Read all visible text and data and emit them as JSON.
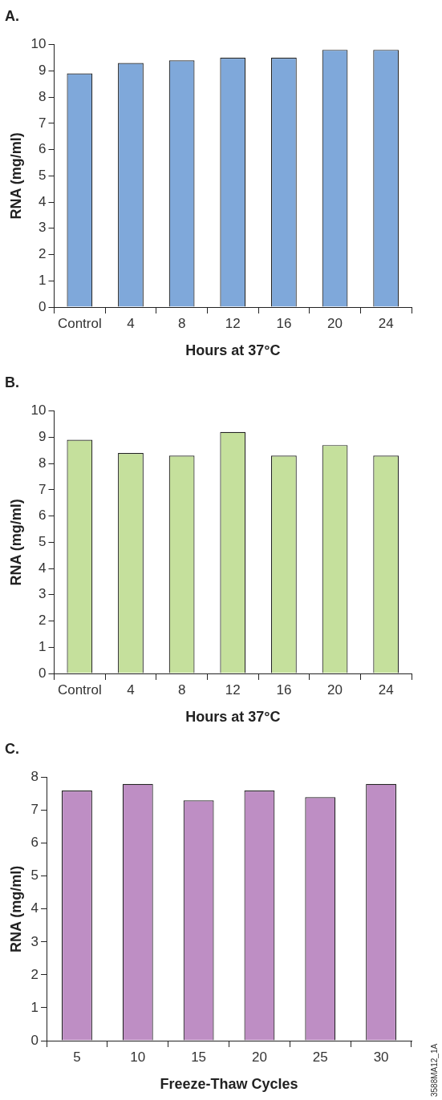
{
  "chart_data": [
    {
      "type": "bar",
      "title": "A.",
      "xlabel": "Hours at 37°C",
      "ylabel": "RNA (mg/ml)",
      "categories": [
        "Control",
        "4",
        "8",
        "12",
        "16",
        "20",
        "24"
      ],
      "values": [
        8.9,
        9.3,
        9.4,
        9.5,
        9.5,
        9.8,
        9.8
      ],
      "color": "#7fa8da",
      "ylim": [
        0,
        10
      ],
      "yticks": [
        0,
        1,
        2,
        3,
        4,
        5,
        6,
        7,
        8,
        9,
        10
      ],
      "grid": false,
      "legend": false
    },
    {
      "type": "bar",
      "title": "B.",
      "xlabel": "Hours at 37°C",
      "ylabel": "RNA (mg/ml)",
      "categories": [
        "Control",
        "4",
        "8",
        "12",
        "16",
        "20",
        "24"
      ],
      "values": [
        8.9,
        8.4,
        8.3,
        9.2,
        8.3,
        8.7,
        8.3
      ],
      "color": "#c5e09c",
      "ylim": [
        0,
        10
      ],
      "yticks": [
        0,
        1,
        2,
        3,
        4,
        5,
        6,
        7,
        8,
        9,
        10
      ],
      "grid": false,
      "legend": false
    },
    {
      "type": "bar",
      "title": "C.",
      "xlabel": "Freeze-Thaw Cycles",
      "ylabel": "RNA (mg/ml)",
      "categories": [
        "5",
        "10",
        "15",
        "20",
        "25",
        "30"
      ],
      "values": [
        7.6,
        7.8,
        7.3,
        7.6,
        7.4,
        7.8
      ],
      "color": "#be8ec4",
      "ylim": [
        0,
        8
      ],
      "yticks": [
        0,
        1,
        2,
        3,
        4,
        5,
        6,
        7,
        8
      ],
      "grid": false,
      "legend": false,
      "annotations": [
        "3588MA12_1A"
      ]
    }
  ]
}
